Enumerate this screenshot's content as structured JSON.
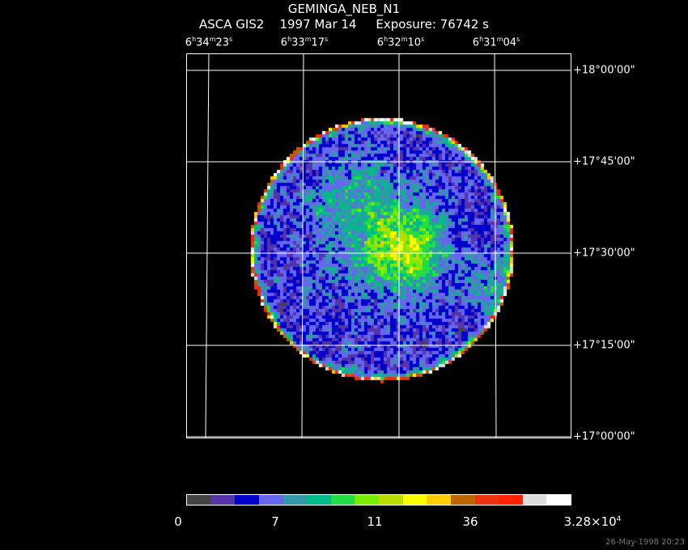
{
  "header": {
    "object": "GEMINGA_NEB_N1",
    "mission": "ASCA GIS2",
    "date": "1997 Mar 14",
    "exposure": "Exposure: 76742 s"
  },
  "ra_labels": [
    {
      "h": "6",
      "hs": "h",
      "m": "34",
      "ms": "m",
      "s": "23",
      "ss": "s"
    },
    {
      "h": "6",
      "hs": "h",
      "m": "33",
      "ms": "m",
      "s": "17",
      "ss": "s"
    },
    {
      "h": "6",
      "hs": "h",
      "m": "32",
      "ms": "m",
      "s": "10",
      "ss": "s"
    },
    {
      "h": "6",
      "hs": "h",
      "m": "31",
      "ms": "m",
      "s": "04",
      "ss": "s"
    }
  ],
  "dec_labels": [
    "+18°00'00\"",
    "+17°45'00\"",
    "+17°30'00\"",
    "+17°15'00\"",
    "+17°00'00\""
  ],
  "colorbar": {
    "colors": [
      "#444444",
      "#5533aa",
      "#0000cc",
      "#6666ee",
      "#3399aa",
      "#00bb88",
      "#22dd44",
      "#77ee00",
      "#bbdd00",
      "#ffff00",
      "#ffcc00",
      "#bb6600",
      "#ee3311",
      "#ff2200",
      "#dddddd",
      "#ffffff"
    ],
    "ticks": [
      {
        "label": "0"
      },
      {
        "label": "7"
      },
      {
        "label": "11"
      },
      {
        "label": "36"
      },
      {
        "label": "3.28×10",
        "exp": "4"
      }
    ]
  },
  "timestamp": "26-May-1998 20:23"
}
